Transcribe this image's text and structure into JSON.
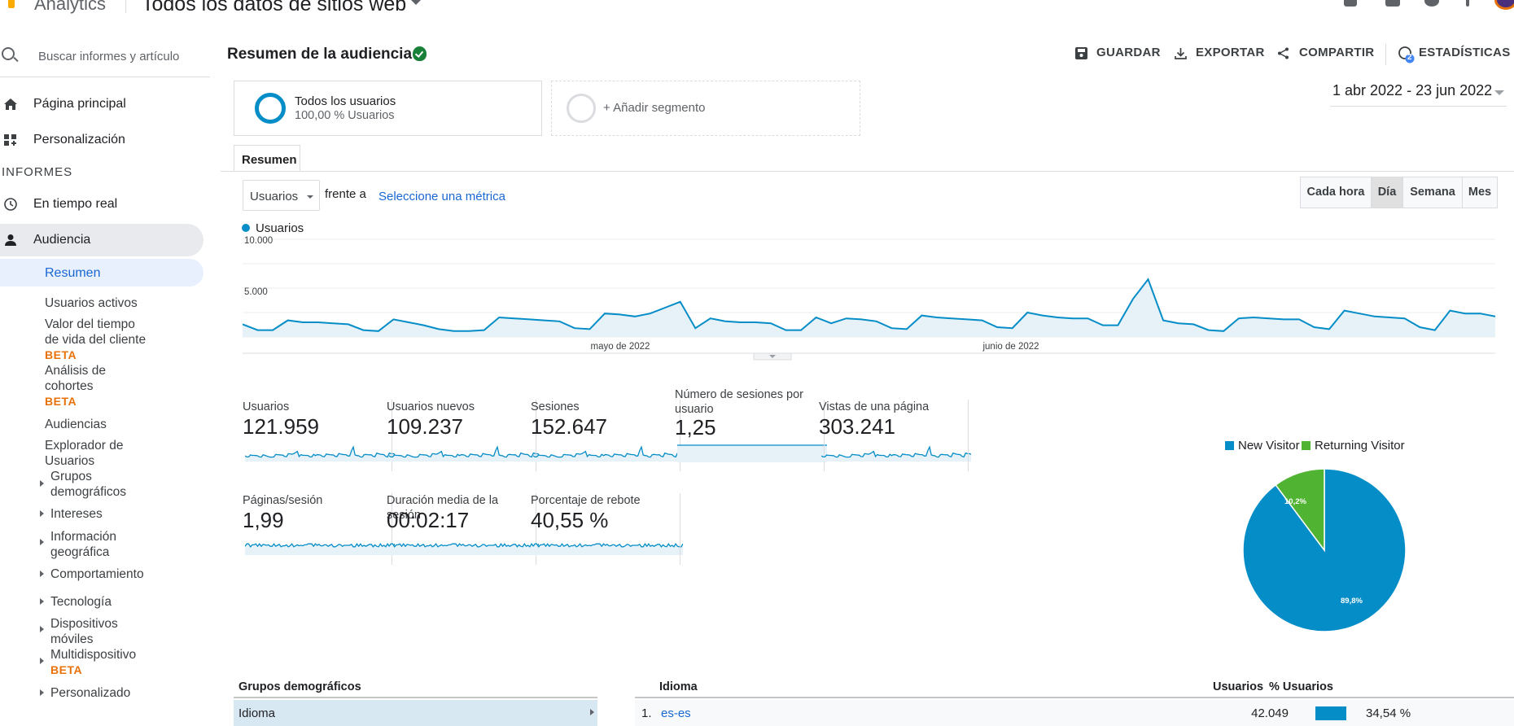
{
  "app": {
    "name": "Analytics",
    "property": "Todos los datos de sitios web"
  },
  "sidebar": {
    "search_placeholder": "Buscar informes y artículo",
    "home": "Página principal",
    "custom": "Personalización",
    "section": "INFORMES",
    "realtime": "En tiempo real",
    "audience": "Audiencia",
    "sub": {
      "overview": "Resumen",
      "active_users": "Usuarios activos",
      "ltv_1": "Valor del tiempo",
      "ltv_2": "de vida del cliente",
      "beta": "BETA",
      "cohort_1": "Análisis de",
      "cohort_2": "cohortes",
      "audiences": "Audiencias",
      "explorer_1": "Explorador de",
      "explorer_2": "Usuarios",
      "demo_1": "Grupos",
      "demo_2": "demográficos",
      "interests": "Intereses",
      "geo_1": "Información",
      "geo_2": "geográfica",
      "behavior": "Comportamiento",
      "tech": "Tecnología",
      "mobile_1": "Dispositivos",
      "mobile_2": "móviles",
      "cross": "Multidispositivo",
      "custom": "Personalizado"
    }
  },
  "header": {
    "title": "Resumen de la audiencia",
    "save": "GUARDAR",
    "export": "EXPORTAR",
    "share": "COMPARTIR",
    "insights": "ESTADÍSTICAS",
    "insights_badge": "2"
  },
  "segments": {
    "s1_title": "Todos los usuarios",
    "s1_sub": "100,00 % Usuarios",
    "add": "+ Añadir segmento"
  },
  "date_range": "1 abr 2022 - 23 jun 2022",
  "tab": "Resumen",
  "controls": {
    "metric": "Usuarios",
    "versus": "frente a",
    "pick": "Seleccione una métrica",
    "gran": [
      "Cada hora",
      "Día",
      "Semana",
      "Mes"
    ],
    "gran_active": "Día"
  },
  "chart_data": {
    "type": "area",
    "series": [
      {
        "name": "Usuarios",
        "values": [
          1300,
          700,
          700,
          1700,
          1500,
          1500,
          1400,
          1300,
          700,
          600,
          1800,
          1500,
          1200,
          800,
          600,
          600,
          700,
          2000,
          1900,
          1800,
          1700,
          1600,
          900,
          800,
          2400,
          2300,
          2100,
          2400,
          3000,
          3600,
          900,
          1900,
          1600,
          1500,
          1500,
          1400,
          700,
          700,
          2000,
          1400,
          1900,
          1800,
          1600,
          900,
          800,
          2200,
          2000,
          1900,
          1800,
          1700,
          1000,
          900,
          2500,
          2200,
          2000,
          1900,
          1900,
          1200,
          1200,
          3900,
          5900,
          1700,
          1400,
          1300,
          700,
          600,
          1900,
          2000,
          1900,
          1800,
          1800,
          1000,
          800,
          2700,
          2400,
          2100,
          2000,
          1900,
          1000,
          700,
          2700,
          2400,
          2400,
          2100
        ]
      }
    ],
    "ylim": [
      0,
      10000
    ],
    "yticks": [
      "10.000",
      "5.000"
    ],
    "xlabels": [
      "mayo de 2022",
      "junio de 2022"
    ],
    "color": "#058dc7"
  },
  "kpis": [
    {
      "label": "Usuarios",
      "value": "121.959"
    },
    {
      "label": "Usuarios nuevos",
      "value": "109.237"
    },
    {
      "label": "Sesiones",
      "value": "152.647"
    },
    {
      "label": "Número de sesiones por usuario",
      "value": "1,25"
    },
    {
      "label": "Vistas de una página",
      "value": "303.241"
    },
    {
      "label": "Páginas/sesión",
      "value": "1,99"
    },
    {
      "label": "Duración media de la sesión",
      "value": "00:02:17"
    },
    {
      "label": "Porcentaje de rebote",
      "value": "40,55 %"
    }
  ],
  "pie": {
    "new_label": "New Visitor",
    "ret_label": "Returning Visitor",
    "new_pct": "89,8%",
    "ret_pct": "10,2%",
    "new_value": 89.8,
    "ret_value": 10.2,
    "new_color": "#058dc7",
    "ret_color": "#50b432"
  },
  "table": {
    "left_title": "Grupos demográficos",
    "left_row": "Idioma",
    "dim_title": "Idioma",
    "col_users": "Usuarios",
    "col_pct": "% Usuarios",
    "row1": {
      "idx": "1.",
      "lang": "es-es",
      "users": "42.049",
      "pct": "34,54 %"
    }
  }
}
